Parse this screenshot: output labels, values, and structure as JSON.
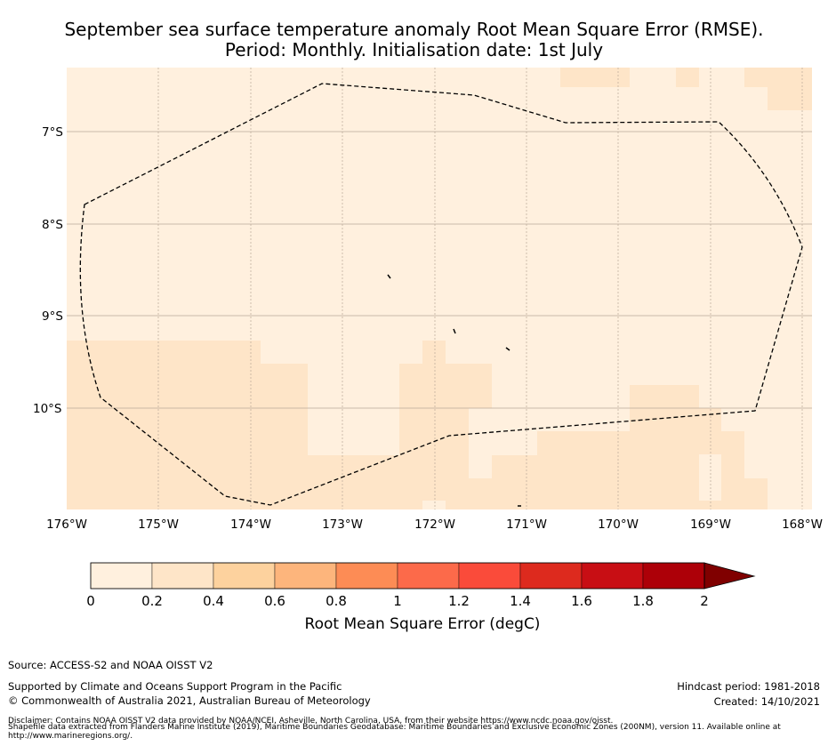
{
  "title_line1": "September sea surface temperature anomaly Root Mean Square Error (RMSE).",
  "title_line2": "Period: Monthly. Initialisation date: 1st July",
  "map": {
    "lon_ticks": [
      "176°W",
      "175°W",
      "174°W",
      "173°W",
      "172°W",
      "171°W",
      "170°W",
      "169°W",
      "168°W"
    ],
    "lat_ticks": [
      "7°S",
      "8°S",
      "9°S",
      "10°S"
    ],
    "cell_colors": {
      "low": "#fff0de",
      "mid": "#fee5c8"
    },
    "boundary_style": "dashed black line (EEZ)"
  },
  "colorbar": {
    "ticks": [
      "0",
      "0.2",
      "0.4",
      "0.6",
      "0.8",
      "1",
      "1.2",
      "1.4",
      "1.6",
      "1.8",
      "2"
    ],
    "colors": [
      "#fff0de",
      "#fee5c8",
      "#fdd29e",
      "#fdb57c",
      "#fd8c55",
      "#fc6a4a",
      "#fa4b3a",
      "#dd2a1e",
      "#c80e14",
      "#ad0008"
    ],
    "extend_color": "#800000",
    "label": "Root Mean Square Error (degC)"
  },
  "footer": {
    "source": "Source: ACCESS-S2 and NOAA OISST V2",
    "supported": "Supported by Climate and Oceans Support Program in the Pacific",
    "copyright": "© Commonwealth of Australia 2021, Australian Bureau of Meteorology",
    "hindcast": "Hindcast period: 1981-2018",
    "created": "Created: 14/10/2021",
    "disclaimer1": "Disclaimer: Contains NOAA OISST V2 data provided by NOAA/NCEI, Asheville, North Carolina, USA, from their website https://www.ncdc.noaa.gov/oisst.",
    "disclaimer2": "Shapefile data extracted from Flanders Marine Institute (2019), Maritime Boundaries Geodatabase: Maritime Boundaries and Exclusive Economic Zones (200NM), version 11. Available online at",
    "disclaimer3": "http://www.marineregions.org/."
  }
}
